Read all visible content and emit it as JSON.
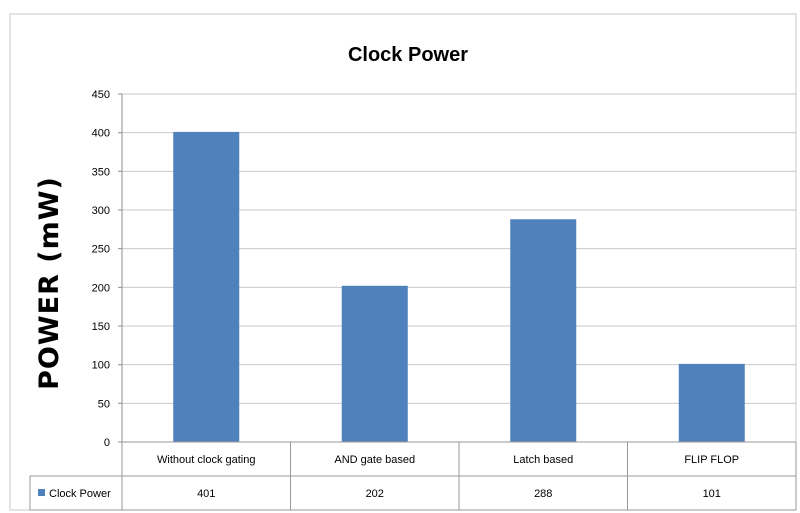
{
  "chart_data": {
    "type": "bar",
    "title": "Clock Power",
    "ylabel": "POWER (mW)",
    "xlabel": "",
    "ylim": [
      0,
      450
    ],
    "yticks": [
      0,
      50,
      100,
      150,
      200,
      250,
      300,
      350,
      400,
      450
    ],
    "grid": true,
    "categories": [
      "Without clock gating",
      "AND gate based",
      "Latch based",
      "FLIP FLOP"
    ],
    "series": [
      {
        "name": "Clock Power",
        "values": [
          401,
          202,
          288,
          101
        ],
        "color": "#4f81bd"
      }
    ],
    "data_table": true
  }
}
